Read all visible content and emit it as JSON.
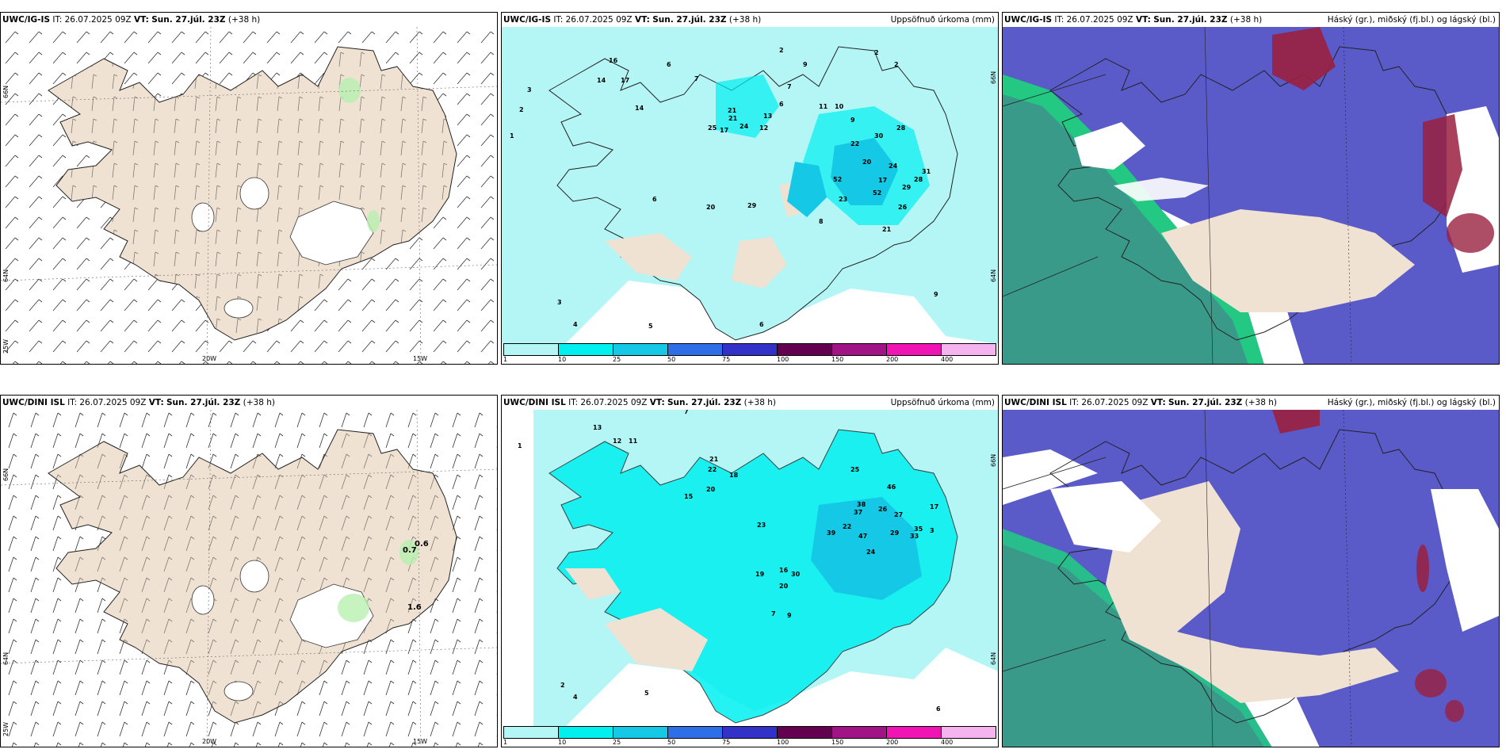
{
  "panels": [
    {
      "model": "UWC/IG-IS",
      "it": "26.07.2025 09Z",
      "vt_label": "VT:",
      "vt": "Sun. 27.júl. 23Z",
      "lead": "(+38 h)",
      "right_title": ""
    },
    {
      "model": "UWC/IG-IS",
      "it": "26.07.2025 09Z",
      "vt_label": "VT:",
      "vt": "Sun. 27.júl. 23Z",
      "lead": "(+38 h)",
      "right_title": "Uppsöfnuð úrkoma (mm)"
    },
    {
      "model": "UWC/IG-IS",
      "it": "26.07.2025 09Z",
      "vt_label": "VT:",
      "vt": "Sun. 27.júl. 23Z",
      "lead": "(+38 h)",
      "right_title": "Háský (gr.), miðský (fj.bl.) og lágský (bl.)"
    },
    {
      "model": "UWC/DINI ISL",
      "it": "26.07.2025 09Z",
      "vt_label": "VT:",
      "vt": "Sun. 27.júl. 23Z",
      "lead": "(+38 h)",
      "right_title": ""
    },
    {
      "model": "UWC/DINI ISL",
      "it": "26.07.2025 09Z",
      "vt_label": "VT:",
      "vt": "Sun. 27.júl. 23Z",
      "lead": "(+38 h)",
      "right_title": "Uppsöfnuð úrkoma (mm)"
    },
    {
      "model": "UWC/DINI ISL",
      "it": "26.07.2025 09Z",
      "vt_label": "VT:",
      "vt": "Sun. 27.júl. 23Z",
      "lead": "(+38 h)",
      "right_title": "Háský (gr.), miðský (fj.bl.) og lágský (bl.)"
    }
  ],
  "labels": {
    "it_prefix": "IT:",
    "lon_20w": "20W",
    "lon_15w": "15W",
    "lat_66n": "66N",
    "lat_64n": "64N",
    "lat_25w": "25W",
    "wind_val_1": "0.7",
    "wind_val_2": "0.6",
    "wind_val_3": "1.6"
  },
  "legend": {
    "ticks": [
      "1",
      "10",
      "25",
      "50",
      "75",
      "100",
      "150",
      "200",
      "400"
    ],
    "colors": [
      "#b4f5f5",
      "#00f0f0",
      "#14c8e6",
      "#2e6ee6",
      "#3232c8",
      "#640050",
      "#a01486",
      "#f014b4",
      "#f5b4f0"
    ]
  },
  "precip_values_top": [
    "16",
    "14",
    "17",
    "6",
    "7",
    "3",
    "2",
    "2",
    "9",
    "14",
    "21",
    "6",
    "7",
    "2",
    "2",
    "52",
    "52",
    "30",
    "22",
    "20",
    "28",
    "24",
    "31",
    "28",
    "23",
    "29",
    "26",
    "21",
    "17",
    "25",
    "17",
    "21",
    "24",
    "13",
    "12",
    "11",
    "10",
    "9",
    "8",
    "1",
    "3",
    "4",
    "5",
    "6"
  ],
  "precip_values_bottom": [
    "13",
    "12",
    "11",
    "7",
    "21",
    "22",
    "18",
    "20",
    "15",
    "25",
    "46",
    "38",
    "37",
    "26",
    "27",
    "29",
    "33",
    "35",
    "39",
    "47",
    "24",
    "22",
    "16",
    "19",
    "20",
    "23",
    "30",
    "17",
    "3",
    "7",
    "9",
    "1",
    "2",
    "4",
    "5",
    "6"
  ],
  "colors": {
    "land": "#f0e2d2",
    "green": "#b8f0b0",
    "cyan_light": "#b4f5f5",
    "cyan": "#00f0f0",
    "sky_blue": "#14c8e6",
    "mid_cloud": "#5a5ac8",
    "high_cloud": "#9a2040",
    "low_cloud": "#3a9a8a",
    "low_cloud_edge": "#20d080"
  }
}
